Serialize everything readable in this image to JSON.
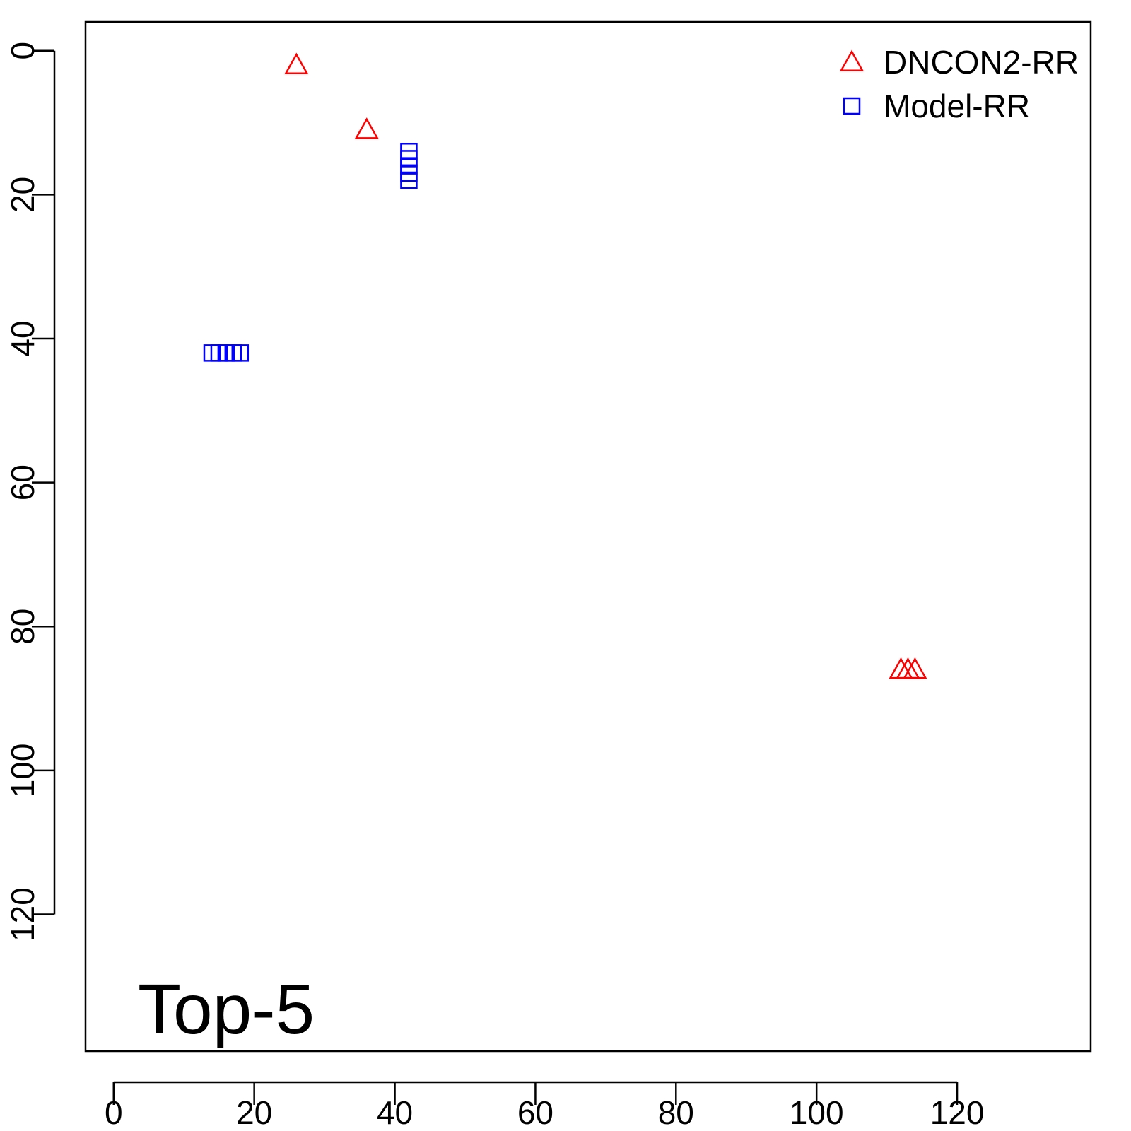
{
  "chart_data": {
    "type": "scatter",
    "annotation": "Top-5",
    "xlim": [
      -4,
      139
    ],
    "ylim": [
      139,
      -4
    ],
    "y_reversed": true,
    "grid": false,
    "legend_position": "top-right",
    "x_ticks": [
      0,
      20,
      40,
      60,
      80,
      100,
      120
    ],
    "y_ticks": [
      0,
      20,
      40,
      60,
      80,
      100,
      120
    ],
    "series": [
      {
        "name": "DNCON2-RR",
        "marker": "triangle",
        "color": "#ff0000",
        "points": [
          {
            "x": 26,
            "y": 2
          },
          {
            "x": 36,
            "y": 11
          },
          {
            "x": 112,
            "y": 86
          },
          {
            "x": 113,
            "y": 86
          },
          {
            "x": 114,
            "y": 86
          }
        ]
      },
      {
        "name": "Model-RR",
        "marker": "square",
        "color": "#0000ff",
        "points": [
          {
            "x": 42,
            "y": 14
          },
          {
            "x": 42,
            "y": 15
          },
          {
            "x": 42,
            "y": 16
          },
          {
            "x": 42,
            "y": 17
          },
          {
            "x": 42,
            "y": 18
          },
          {
            "x": 14,
            "y": 42
          },
          {
            "x": 15,
            "y": 42
          },
          {
            "x": 16,
            "y": 42
          },
          {
            "x": 17,
            "y": 42
          },
          {
            "x": 18,
            "y": 42
          }
        ]
      }
    ]
  }
}
